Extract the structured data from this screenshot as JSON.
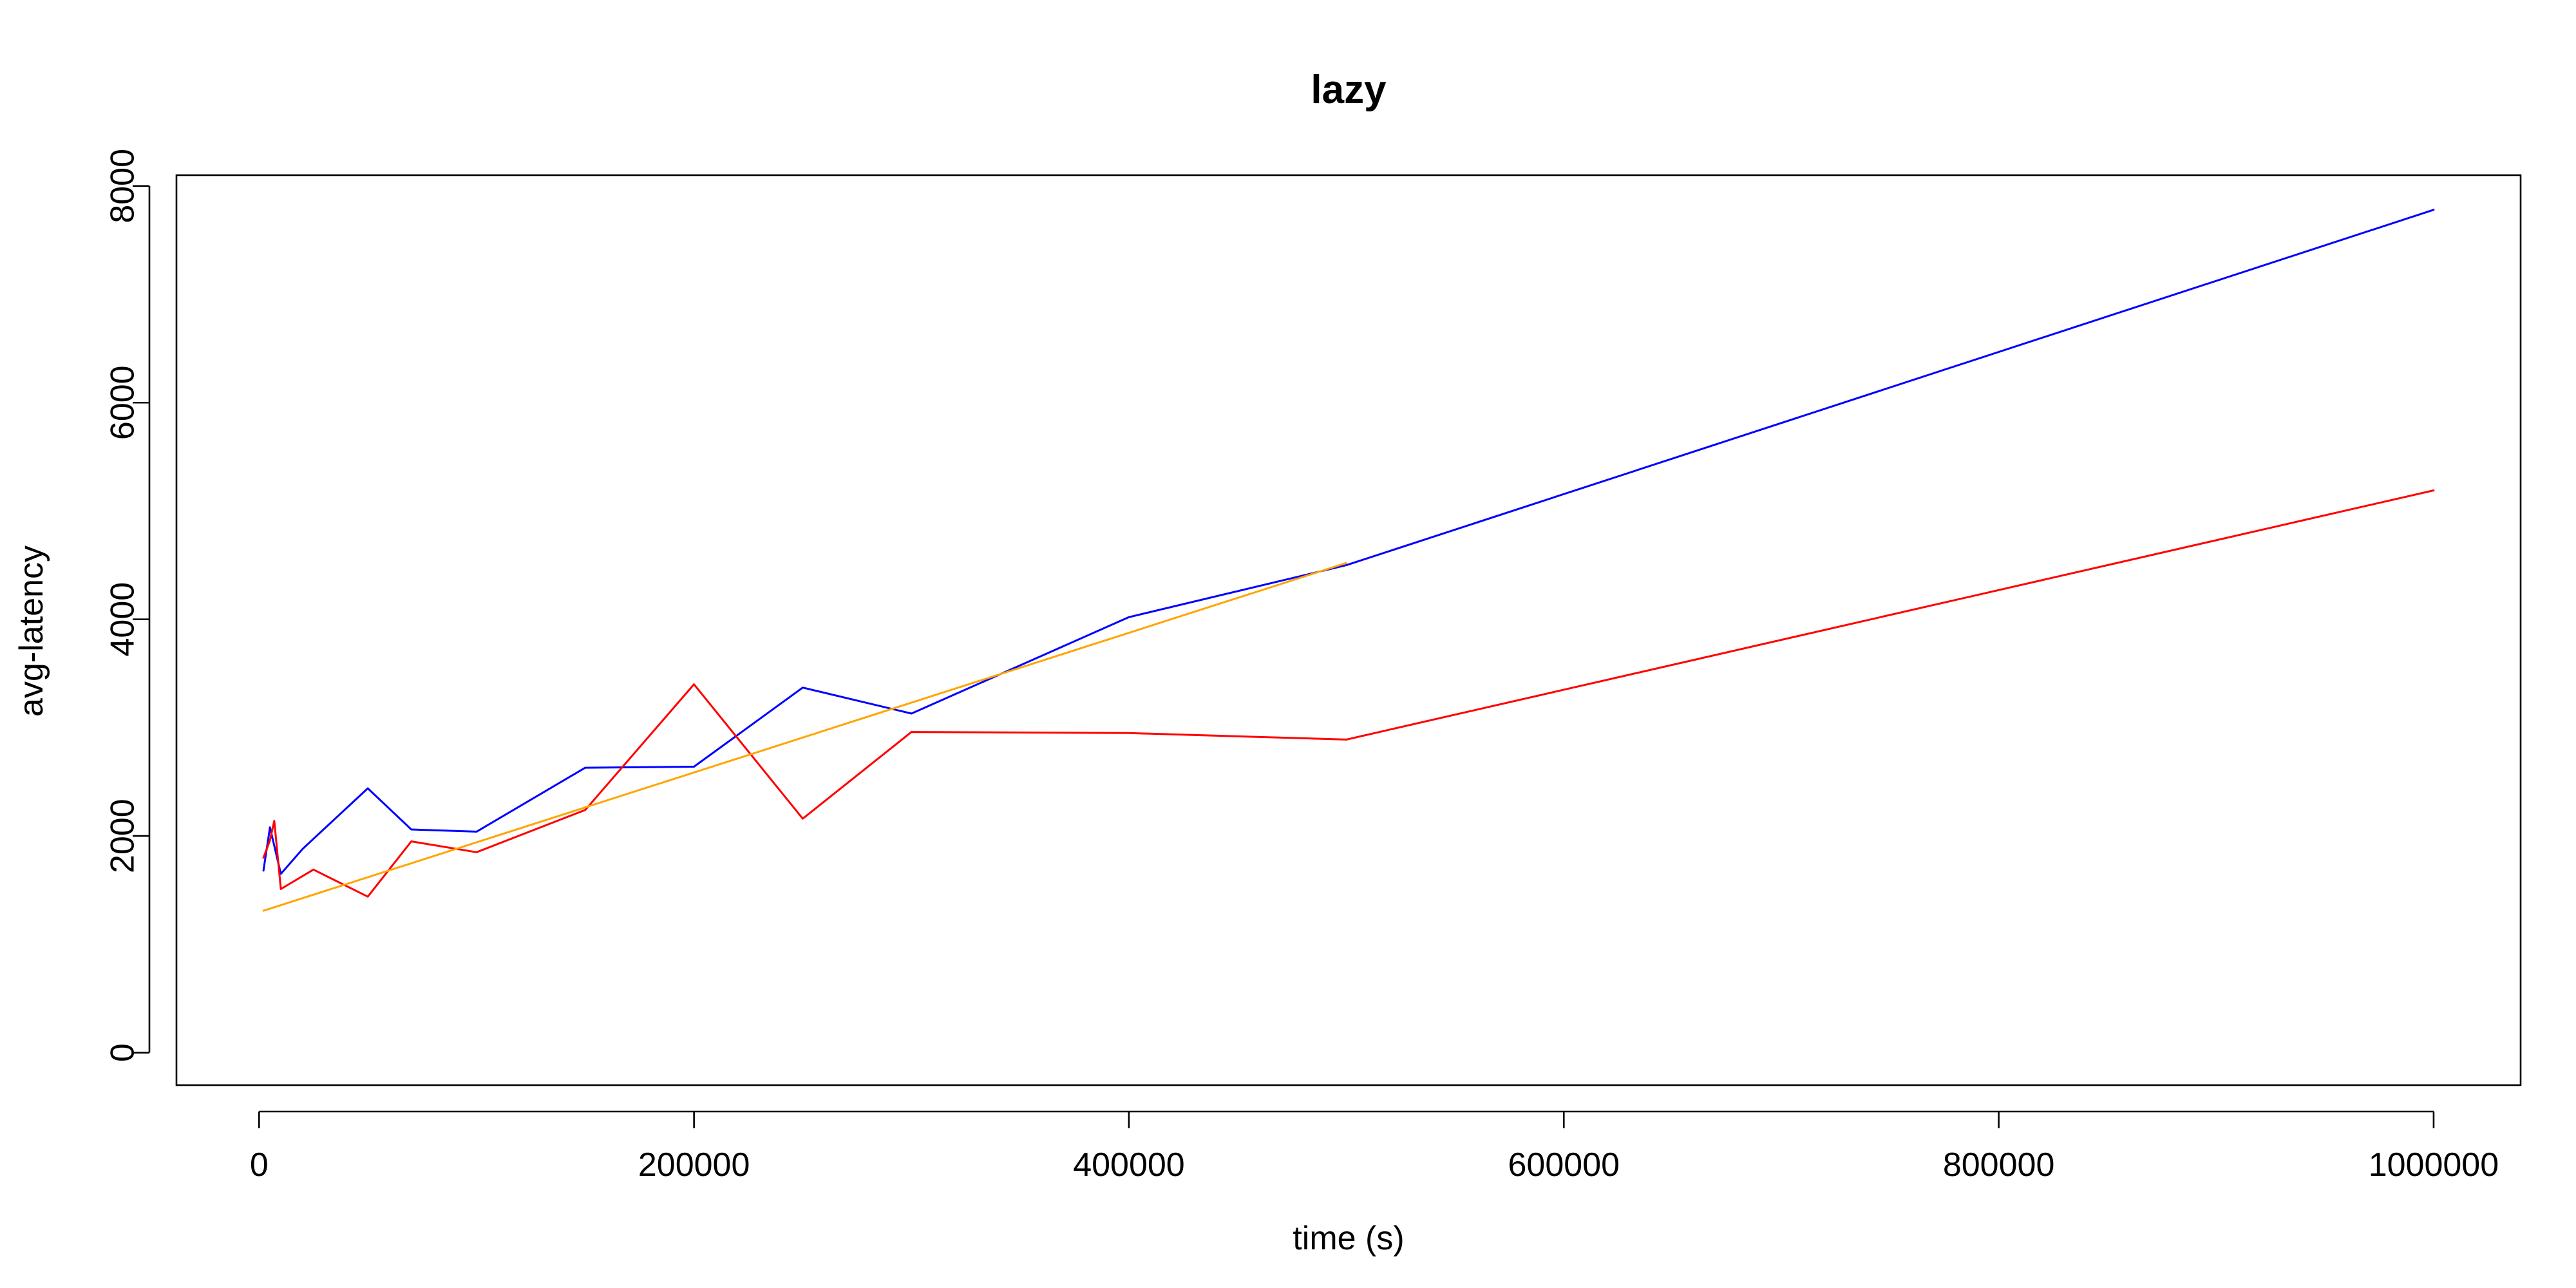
{
  "chart_data": {
    "type": "line",
    "title": "lazy",
    "xlabel": "time (s)",
    "ylabel": "avg-latency",
    "xlim": [
      -38000,
      1040000
    ],
    "ylim": [
      -300,
      8100
    ],
    "x_ticks": [
      0,
      200000,
      400000,
      600000,
      800000,
      1000000
    ],
    "x_tick_labels": [
      "0",
      "200000",
      "400000",
      "600000",
      "800000",
      "1000000"
    ],
    "y_ticks": [
      0,
      2000,
      4000,
      6000,
      8000
    ],
    "y_tick_labels": [
      "0",
      "2000",
      "4000",
      "6000",
      "8000"
    ],
    "grid": false,
    "legend": "none",
    "series": [
      {
        "color": "#0000ff",
        "x": [
          2000,
          5000,
          10000,
          20000,
          50000,
          70000,
          100000,
          150000,
          200000,
          250000,
          300000,
          400000,
          500000,
          1000000
        ],
        "y": [
          1680,
          2080,
          1650,
          1880,
          2440,
          2060,
          2040,
          2630,
          2640,
          3370,
          3130,
          4020,
          4500,
          7780
        ]
      },
      {
        "color": "#ff0000",
        "x": [
          2000,
          5000,
          7000,
          10000,
          25000,
          50000,
          70000,
          100000,
          150000,
          200000,
          250000,
          300000,
          400000,
          500000,
          1000000
        ],
        "y": [
          1800,
          1960,
          2140,
          1510,
          1690,
          1440,
          1950,
          1850,
          2240,
          3400,
          2160,
          2960,
          2950,
          2890,
          5190
        ]
      },
      {
        "color": "#ffa500",
        "x": [
          2000,
          500000
        ],
        "y": [
          1310,
          4520
        ]
      }
    ]
  }
}
